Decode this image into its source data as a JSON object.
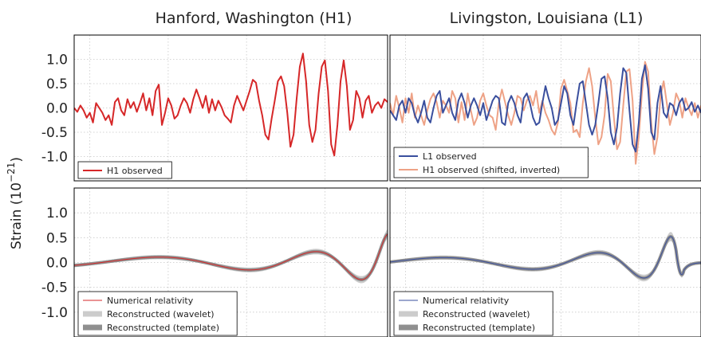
{
  "titles": {
    "left": "Hanford, Washington (H1)",
    "right": "Livingston, Louisiana (L1)"
  },
  "ylabel": "Strain (10",
  "ylabel_exp": "−21",
  "ylabel_close": ")",
  "colors": {
    "h1": "#d62728",
    "l1": "#3a4f9e",
    "h1_shifted": "#eea286",
    "wavelet": "#cccccc",
    "template": "#8f8f8f"
  },
  "chart_data": [
    {
      "type": "line",
      "panel": "top-left",
      "ylim": [
        -1.5,
        1.5
      ],
      "yticks": [
        "1.0",
        "0.5",
        "0.0",
        "-0.5",
        "-1.0"
      ],
      "ytick_values": [
        1.0,
        0.5,
        0.0,
        -0.5,
        -1.0
      ],
      "legend": {
        "placement": "lower-left",
        "entries": [
          "H1 observed"
        ]
      },
      "series": [
        {
          "name": "H1 observed",
          "color": "#d62728",
          "kind": "line",
          "x": [
            0,
            0.01,
            0.02,
            0.03,
            0.04,
            0.05,
            0.06,
            0.07,
            0.08,
            0.09,
            0.1,
            0.11,
            0.12,
            0.13,
            0.14,
            0.15,
            0.16,
            0.17,
            0.18,
            0.19,
            0.2,
            0.21,
            0.22,
            0.23,
            0.24,
            0.25,
            0.26,
            0.27,
            0.28,
            0.29,
            0.3,
            0.31,
            0.32,
            0.33,
            0.34,
            0.35,
            0.36,
            0.37,
            0.38,
            0.39,
            0.4,
            0.41,
            0.42,
            0.43,
            0.44,
            0.45,
            0.46,
            0.47,
            0.48,
            0.49,
            0.5,
            0.51,
            0.52,
            0.53,
            0.54,
            0.55,
            0.56,
            0.57,
            0.58,
            0.59,
            0.6,
            0.61,
            0.62,
            0.63,
            0.64,
            0.65,
            0.66,
            0.67,
            0.68,
            0.69,
            0.7,
            0.71,
            0.72,
            0.73,
            0.74,
            0.75,
            0.76,
            0.77,
            0.78,
            0.79,
            0.8,
            0.81,
            0.82,
            0.83,
            0.84,
            0.85,
            0.86,
            0.87,
            0.88,
            0.89,
            0.9,
            0.91,
            0.92,
            0.93,
            0.94,
            0.95,
            0.96,
            0.97,
            0.98,
            0.99,
            1.0
          ],
          "y": [
            0.0,
            -0.08,
            0.05,
            -0.05,
            -0.2,
            -0.1,
            -0.3,
            0.1,
            0.0,
            -0.1,
            -0.25,
            -0.15,
            -0.35,
            0.12,
            0.2,
            -0.05,
            -0.15,
            0.18,
            0.0,
            0.12,
            -0.08,
            0.1,
            0.3,
            -0.05,
            0.2,
            -0.15,
            0.35,
            0.48,
            -0.35,
            -0.1,
            0.2,
            0.05,
            -0.22,
            -0.15,
            0.05,
            0.2,
            0.1,
            -0.1,
            0.18,
            0.38,
            0.2,
            0.0,
            0.25,
            -0.1,
            0.18,
            -0.05,
            0.15,
            0.02,
            -0.15,
            -0.22,
            -0.3,
            0.05,
            0.25,
            0.1,
            -0.05,
            0.15,
            0.35,
            0.58,
            0.52,
            0.15,
            -0.15,
            -0.55,
            -0.65,
            -0.22,
            0.15,
            0.55,
            0.65,
            0.45,
            -0.1,
            -0.8,
            -0.55,
            0.2,
            0.85,
            1.12,
            0.55,
            -0.35,
            -0.7,
            -0.45,
            0.3,
            0.85,
            0.98,
            0.35,
            -0.75,
            -0.98,
            -0.35,
            0.55,
            0.98,
            0.45,
            -0.45,
            -0.25,
            0.35,
            0.2,
            -0.2,
            0.15,
            0.25,
            -0.1,
            0.05,
            0.12,
            0.0,
            0.18,
            0.12
          ]
        }
      ]
    },
    {
      "type": "line",
      "panel": "top-right",
      "ylim": [
        -1.5,
        1.5
      ],
      "legend": {
        "placement": "lower-left",
        "entries": [
          "L1 observed",
          "H1 observed (shifted, inverted)"
        ]
      },
      "series": [
        {
          "name": "H1 observed (shifted, inverted)",
          "color": "#eea286",
          "kind": "line",
          "x": [
            0,
            0.01,
            0.02,
            0.03,
            0.04,
            0.05,
            0.06,
            0.07,
            0.08,
            0.09,
            0.1,
            0.11,
            0.12,
            0.13,
            0.14,
            0.15,
            0.16,
            0.17,
            0.18,
            0.19,
            0.2,
            0.21,
            0.22,
            0.23,
            0.24,
            0.25,
            0.26,
            0.27,
            0.28,
            0.29,
            0.3,
            0.31,
            0.32,
            0.33,
            0.34,
            0.35,
            0.36,
            0.37,
            0.38,
            0.39,
            0.4,
            0.41,
            0.42,
            0.43,
            0.44,
            0.45,
            0.46,
            0.47,
            0.48,
            0.49,
            0.5,
            0.51,
            0.52,
            0.53,
            0.54,
            0.55,
            0.56,
            0.57,
            0.58,
            0.59,
            0.6,
            0.61,
            0.62,
            0.63,
            0.64,
            0.65,
            0.66,
            0.67,
            0.68,
            0.69,
            0.7,
            0.71,
            0.72,
            0.73,
            0.74,
            0.75,
            0.76,
            0.77,
            0.78,
            0.79,
            0.8,
            0.81,
            0.82,
            0.83,
            0.84,
            0.85,
            0.86,
            0.87,
            0.88,
            0.89,
            0.9,
            0.91,
            0.92,
            0.93,
            0.94,
            0.95,
            0.96,
            0.97,
            0.98,
            0.99,
            1.0
          ],
          "y": [
            0.1,
            -0.15,
            0.25,
            0.0,
            -0.3,
            0.2,
            -0.1,
            0.3,
            -0.2,
            0.05,
            -0.15,
            -0.35,
            -0.05,
            0.18,
            0.3,
            0.12,
            -0.2,
            0.15,
            0.05,
            -0.1,
            0.35,
            0.2,
            -0.3,
            0.12,
            -0.25,
            0.3,
            -0.05,
            -0.35,
            -0.2,
            0.15,
            0.3,
            0.05,
            -0.15,
            -0.2,
            -0.45,
            0.1,
            0.38,
            0.12,
            -0.15,
            -0.35,
            -0.1,
            0.25,
            0.2,
            -0.05,
            0.15,
            0.25,
            0.05,
            0.35,
            -0.1,
            0.15,
            -0.1,
            -0.25,
            -0.45,
            -0.55,
            -0.3,
            0.4,
            0.58,
            0.35,
            0.1,
            -0.5,
            -0.45,
            -0.6,
            0.1,
            0.55,
            0.82,
            0.45,
            -0.2,
            -0.75,
            -0.6,
            -0.15,
            0.7,
            0.55,
            -0.2,
            -0.85,
            -0.7,
            0.05,
            0.75,
            0.8,
            0.15,
            -1.15,
            -0.6,
            0.3,
            0.95,
            0.75,
            -0.3,
            -0.95,
            -0.6,
            0.25,
            0.55,
            0.1,
            -0.35,
            -0.1,
            0.3,
            0.15,
            -0.2,
            0.2,
            0.0,
            -0.15,
            0.1,
            -0.2,
            0.05
          ]
        },
        {
          "name": "L1 observed",
          "color": "#3a4f9e",
          "kind": "line",
          "x": [
            0,
            0.01,
            0.02,
            0.03,
            0.04,
            0.05,
            0.06,
            0.07,
            0.08,
            0.09,
            0.1,
            0.11,
            0.12,
            0.13,
            0.14,
            0.15,
            0.16,
            0.17,
            0.18,
            0.19,
            0.2,
            0.21,
            0.22,
            0.23,
            0.24,
            0.25,
            0.26,
            0.27,
            0.28,
            0.29,
            0.3,
            0.31,
            0.32,
            0.33,
            0.34,
            0.35,
            0.36,
            0.37,
            0.38,
            0.39,
            0.4,
            0.41,
            0.42,
            0.43,
            0.44,
            0.45,
            0.46,
            0.47,
            0.48,
            0.49,
            0.5,
            0.51,
            0.52,
            0.53,
            0.54,
            0.55,
            0.56,
            0.57,
            0.58,
            0.59,
            0.6,
            0.61,
            0.62,
            0.63,
            0.64,
            0.65,
            0.66,
            0.67,
            0.68,
            0.69,
            0.7,
            0.71,
            0.72,
            0.73,
            0.74,
            0.75,
            0.76,
            0.77,
            0.78,
            0.79,
            0.8,
            0.81,
            0.82,
            0.83,
            0.84,
            0.85,
            0.86,
            0.87,
            0.88,
            0.89,
            0.9,
            0.91,
            0.92,
            0.93,
            0.94,
            0.95,
            0.96,
            0.97,
            0.98,
            0.99,
            1.0
          ],
          "y": [
            -0.05,
            -0.15,
            -0.25,
            0.05,
            0.15,
            -0.1,
            0.2,
            0.1,
            -0.15,
            -0.3,
            -0.1,
            0.15,
            -0.2,
            -0.3,
            0.0,
            0.25,
            0.35,
            -0.1,
            0.05,
            0.2,
            -0.1,
            -0.25,
            0.15,
            0.3,
            0.1,
            -0.2,
            0.05,
            0.2,
            0.05,
            -0.15,
            0.1,
            -0.25,
            -0.05,
            0.15,
            0.25,
            0.2,
            -0.3,
            -0.35,
            0.1,
            0.25,
            0.1,
            -0.15,
            -0.3,
            0.2,
            0.3,
            0.1,
            -0.2,
            -0.35,
            -0.3,
            0.1,
            0.45,
            0.2,
            0.0,
            -0.35,
            -0.25,
            0.1,
            0.45,
            0.3,
            -0.15,
            -0.35,
            0.1,
            0.5,
            0.55,
            0.1,
            -0.35,
            -0.55,
            -0.35,
            0.1,
            0.6,
            0.65,
            0.2,
            -0.5,
            -0.75,
            -0.4,
            0.3,
            0.82,
            0.72,
            -0.05,
            -0.75,
            -0.9,
            -0.3,
            0.6,
            0.88,
            0.4,
            -0.5,
            -0.65,
            0.1,
            0.45,
            -0.1,
            -0.2,
            0.1,
            0.05,
            -0.15,
            0.1,
            0.2,
            -0.05,
            0.0,
            0.12,
            -0.08,
            0.05,
            -0.1
          ]
        }
      ]
    },
    {
      "type": "line",
      "panel": "bottom-left",
      "ylim": [
        -1.5,
        1.5
      ],
      "yticks": [
        "1.0",
        "0.5",
        "0.0",
        "-0.5",
        "-1.0"
      ],
      "ytick_values": [
        1.0,
        0.5,
        0.0,
        -0.5,
        -1.0
      ],
      "legend": {
        "placement": "lower-left",
        "entries": [
          "Numerical relativity",
          "Reconstructed (wavelet)",
          "Reconstructed (template)"
        ]
      },
      "series": [
        {
          "name": "Numerical relativity",
          "color": "#d62728",
          "kind": "chirp",
          "params": {
            "t0": 1.05,
            "k": 0.04,
            "alpha": 0.6,
            "amp": 1.05,
            "freq_scale": 2.2
          }
        }
      ]
    },
    {
      "type": "line",
      "panel": "bottom-right",
      "ylim": [
        -1.5,
        1.5
      ],
      "legend": {
        "placement": "lower-left",
        "entries": [
          "Numerical relativity",
          "Reconstructed (wavelet)",
          "Reconstructed (template)"
        ]
      },
      "series": [
        {
          "name": "Numerical relativity",
          "color": "#3a4f9e",
          "kind": "chirp",
          "params": {
            "t0": 0.95,
            "k": 0.04,
            "alpha": 0.6,
            "amp": 0.95,
            "freq_scale": 2.2
          }
        }
      ]
    }
  ]
}
